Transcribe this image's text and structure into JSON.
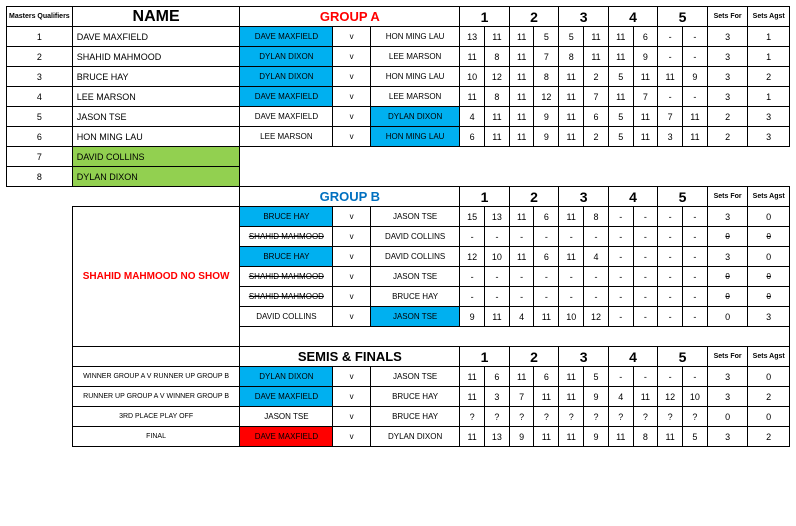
{
  "colors": {
    "blue": "#00b0f0",
    "green": "#92d050",
    "red_bg": "#ff0000",
    "red_text": "#ff0000",
    "groupA": "#ff0000",
    "groupB": "#0070c0"
  },
  "headers": {
    "masters": "Masters Qualifiers",
    "name": "NAME",
    "groupA": "GROUP A",
    "groupB": "GROUP B",
    "semis": "SEMIS & FINALS",
    "setsFor": "Sets For",
    "setsAgst": "Sets Agst"
  },
  "setNums": [
    "1",
    "2",
    "3",
    "4",
    "5"
  ],
  "qualifiers": [
    {
      "n": "1",
      "name": "DAVE MAXFIELD"
    },
    {
      "n": "2",
      "name": "SHAHID MAHMOOD"
    },
    {
      "n": "3",
      "name": "BRUCE HAY"
    },
    {
      "n": "4",
      "name": "LEE MARSON"
    },
    {
      "n": "5",
      "name": "JASON TSE"
    },
    {
      "n": "6",
      "name": "HON MING LAU"
    },
    {
      "n": "7",
      "name": "DAVID COLLINS"
    },
    {
      "n": "8",
      "name": "DYLAN DIXON"
    }
  ],
  "groupA": [
    {
      "p1": "DAVE MAXFIELD",
      "p1c": "blue",
      "v": "v",
      "p2": "HON MING LAU",
      "p2c": "",
      "s": [
        "13",
        "11",
        "11",
        "5",
        "5",
        "11",
        "11",
        "6",
        "-",
        "-"
      ],
      "sf": "3",
      "sa": "1"
    },
    {
      "p1": "DYLAN DIXON",
      "p1c": "blue",
      "v": "v",
      "p2": "LEE MARSON",
      "p2c": "",
      "s": [
        "11",
        "8",
        "11",
        "7",
        "8",
        "11",
        "11",
        "9",
        "-",
        "-"
      ],
      "sf": "3",
      "sa": "1"
    },
    {
      "p1": "DYLAN DIXON",
      "p1c": "blue",
      "v": "v",
      "p2": "HON MING LAU",
      "p2c": "",
      "s": [
        "10",
        "12",
        "11",
        "8",
        "11",
        "2",
        "5",
        "11",
        "11",
        "9"
      ],
      "sf": "3",
      "sa": "2"
    },
    {
      "p1": "DAVE MAXFIELD",
      "p1c": "blue",
      "v": "v",
      "p2": "LEE MARSON",
      "p2c": "",
      "s": [
        "11",
        "8",
        "11",
        "12",
        "11",
        "7",
        "11",
        "7",
        "-",
        "-"
      ],
      "sf": "3",
      "sa": "1"
    },
    {
      "p1": "DAVE MAXFIELD",
      "p1c": "",
      "v": "v",
      "p2": "DYLAN DIXON",
      "p2c": "blue",
      "s": [
        "4",
        "11",
        "11",
        "9",
        "11",
        "6",
        "5",
        "11",
        "7",
        "11"
      ],
      "sf": "2",
      "sa": "3"
    },
    {
      "p1": "LEE MARSON",
      "p1c": "",
      "v": "v",
      "p2": "HON MING LAU",
      "p2c": "blue",
      "s": [
        "6",
        "11",
        "11",
        "9",
        "11",
        "2",
        "5",
        "11",
        "3",
        "11"
      ],
      "sf": "2",
      "sa": "3"
    }
  ],
  "noshow": "SHAHID MAHMOOD NO SHOW",
  "groupB": [
    {
      "p1": "BRUCE HAY",
      "p1c": "blue",
      "v": "v",
      "p2": "JASON TSE",
      "p2c": "",
      "s": [
        "15",
        "13",
        "11",
        "6",
        "11",
        "8",
        "-",
        "-",
        "-",
        "-"
      ],
      "sf": "3",
      "sa": "0"
    },
    {
      "p1": "SHAHID MAHMOOD",
      "p1c": "strike",
      "v": "v",
      "p2": "DAVID COLLINS",
      "p2c": "",
      "s": [
        "-",
        "-",
        "-",
        "-",
        "-",
        "-",
        "-",
        "-",
        "-",
        "-"
      ],
      "sf": "0",
      "sa": "0",
      "st": true
    },
    {
      "p1": "BRUCE HAY",
      "p1c": "blue",
      "v": "v",
      "p2": "DAVID COLLINS",
      "p2c": "",
      "s": [
        "12",
        "10",
        "11",
        "6",
        "11",
        "4",
        "-",
        "-",
        "-",
        "-"
      ],
      "sf": "3",
      "sa": "0"
    },
    {
      "p1": "SHAHID MAHMOOD",
      "p1c": "strike",
      "v": "v",
      "p2": "JASON TSE",
      "p2c": "",
      "s": [
        "-",
        "-",
        "-",
        "-",
        "-",
        "-",
        "-",
        "-",
        "-",
        "-"
      ],
      "sf": "0",
      "sa": "0",
      "st": true
    },
    {
      "p1": "SHAHID MAHMOOD",
      "p1c": "strike",
      "v": "v",
      "p2": "BRUCE HAY",
      "p2c": "",
      "s": [
        "-",
        "-",
        "-",
        "-",
        "-",
        "-",
        "-",
        "-",
        "-",
        "-"
      ],
      "sf": "0",
      "sa": "0",
      "st": true
    },
    {
      "p1": "DAVID COLLINS",
      "p1c": "",
      "v": "v",
      "p2": "JASON TSE",
      "p2c": "blue",
      "s": [
        "9",
        "11",
        "4",
        "11",
        "10",
        "12",
        "-",
        "-",
        "-",
        "-"
      ],
      "sf": "0",
      "sa": "3"
    }
  ],
  "semis": [
    {
      "lab": "WINNER GROUP A V RUNNER UP GROUP B",
      "p1": "DYLAN DIXON",
      "p1c": "blue",
      "v": "v",
      "p2": "JASON TSE",
      "p2c": "",
      "s": [
        "11",
        "6",
        "11",
        "6",
        "11",
        "5",
        "-",
        "-",
        "-",
        "-"
      ],
      "sf": "3",
      "sa": "0"
    },
    {
      "lab": "RUNNER UP GROUP A V WINNER GROUP B",
      "p1": "DAVE MAXFIELD",
      "p1c": "blue",
      "v": "v",
      "p2": "BRUCE HAY",
      "p2c": "",
      "s": [
        "11",
        "3",
        "7",
        "11",
        "11",
        "9",
        "4",
        "11",
        "12",
        "10"
      ],
      "sf": "3",
      "sa": "2"
    },
    {
      "lab": "3RD PLACE PLAY OFF",
      "p1": "JASON TSE",
      "p1c": "",
      "v": "v",
      "p2": "BRUCE HAY",
      "p2c": "",
      "s": [
        "?",
        "?",
        "?",
        "?",
        "?",
        "?",
        "?",
        "?",
        "?",
        "?"
      ],
      "sf": "0",
      "sa": "0"
    },
    {
      "lab": "FINAL",
      "p1": "DAVE MAXFIELD",
      "p1c": "red",
      "v": "v",
      "p2": "DYLAN DIXON",
      "p2c": "",
      "s": [
        "11",
        "13",
        "9",
        "11",
        "11",
        "9",
        "11",
        "8",
        "11",
        "5"
      ],
      "sf": "3",
      "sa": "2"
    }
  ]
}
